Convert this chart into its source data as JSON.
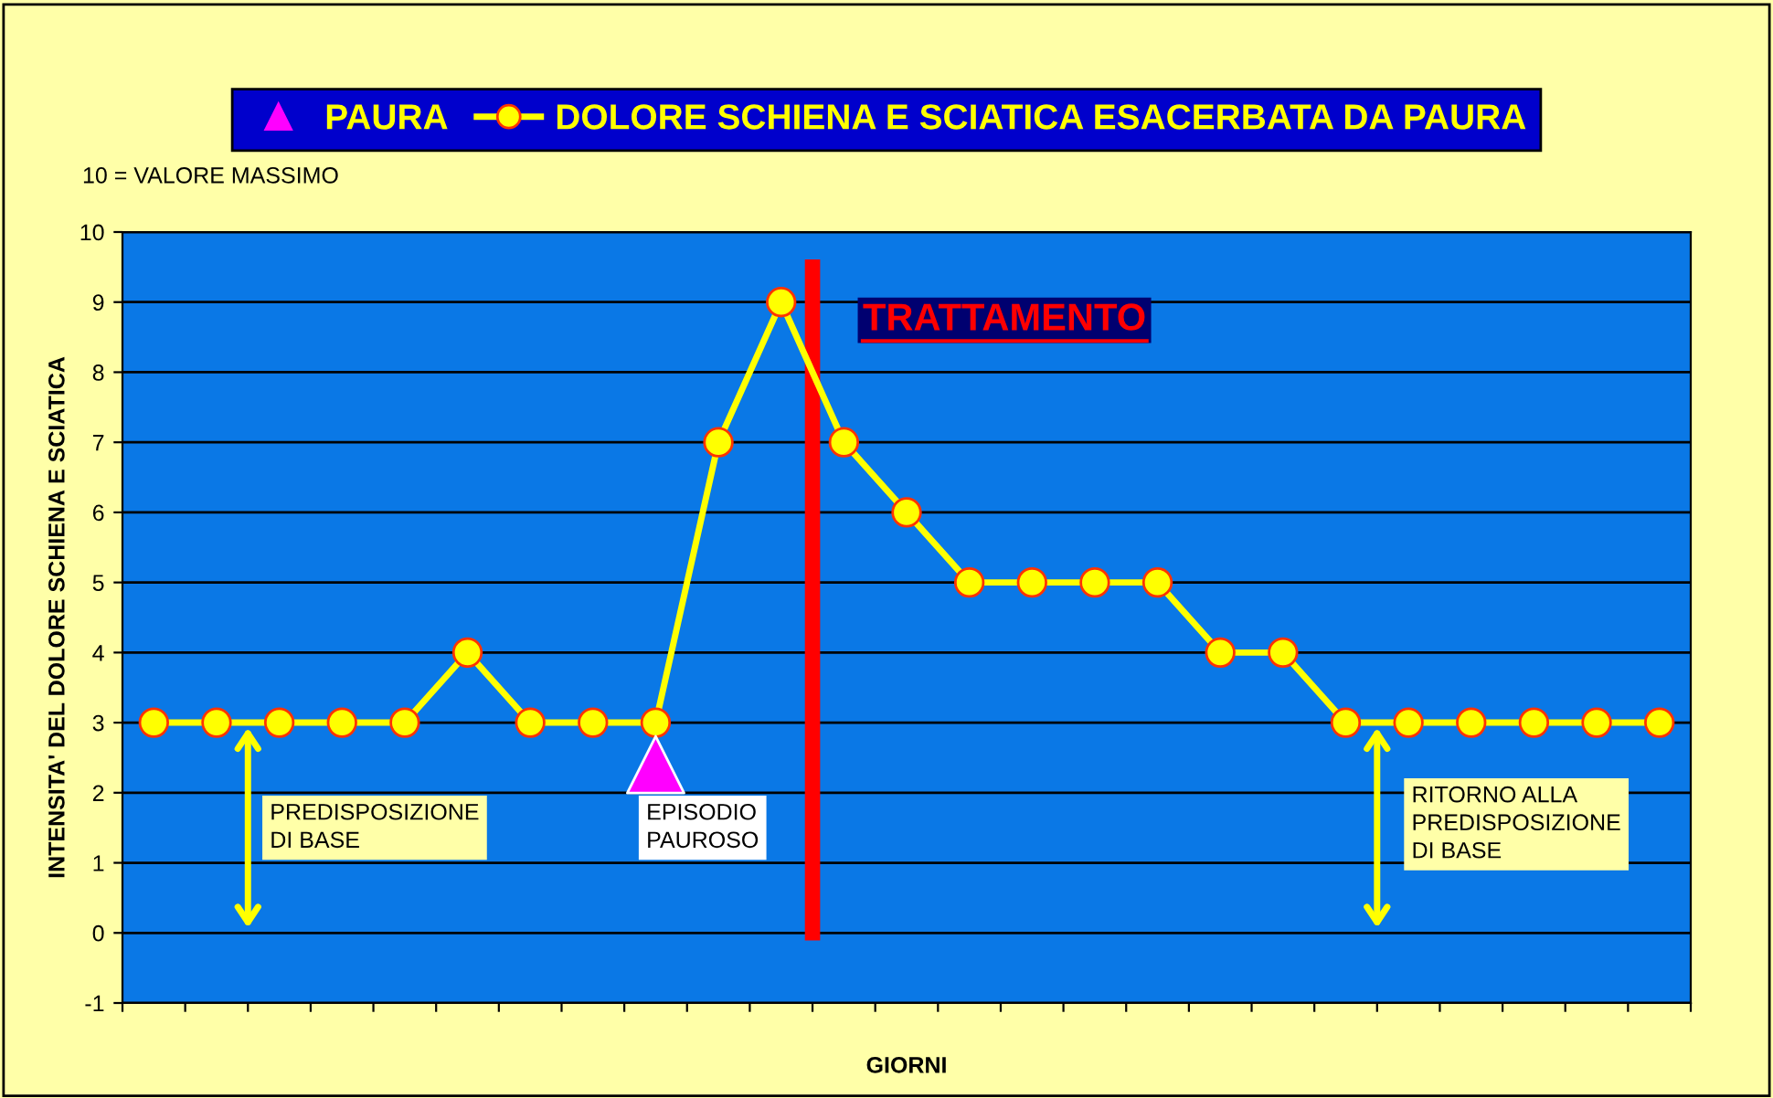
{
  "chart_data": {
    "type": "line",
    "xlabel": "GIORNI",
    "ylabel": "INTENSITA' DEL DOLORE SCHIENA E SCIATICA",
    "categories": [
      null,
      null,
      null,
      null,
      null,
      null,
      null,
      null,
      null,
      null,
      null,
      null,
      null,
      null,
      null,
      null,
      null,
      null,
      null,
      null,
      null,
      null,
      null,
      null,
      null
    ],
    "series": [
      {
        "name": "PAURA",
        "type": "scatter",
        "marker": "triangle",
        "color": "#ff00ff",
        "values": [
          null,
          null,
          null,
          null,
          null,
          null,
          null,
          null,
          2.4,
          null,
          null,
          null,
          null,
          null,
          null,
          null,
          null,
          null,
          null,
          null,
          null,
          null,
          null,
          null,
          null
        ]
      },
      {
        "name": "DOLORE SCHIENA E SCIATICA ESACERBATA DA PAURA",
        "marker": "circle",
        "color": "#ffff00",
        "values": [
          3,
          3,
          3,
          3,
          3,
          4,
          3,
          3,
          3,
          7,
          9,
          7,
          6,
          5,
          5,
          5,
          5,
          4,
          4,
          3,
          3,
          3,
          3,
          3,
          3
        ]
      }
    ],
    "ylim": [
      -1,
      10
    ],
    "yticks": [
      -1,
      0,
      1,
      2,
      3,
      4,
      5,
      6,
      7,
      8,
      9,
      10
    ],
    "grid": "y",
    "legend": "top",
    "annotations": [
      "TRATTAMENTO",
      "10 = VALORE MASSIMO",
      "PREDISPOSIZIONE\nDI BASE",
      "EPISODIO\nPAUROSO",
      "RITORNO ALLA\nPREDISPOSIZIONE\nDI BASE"
    ]
  }
}
